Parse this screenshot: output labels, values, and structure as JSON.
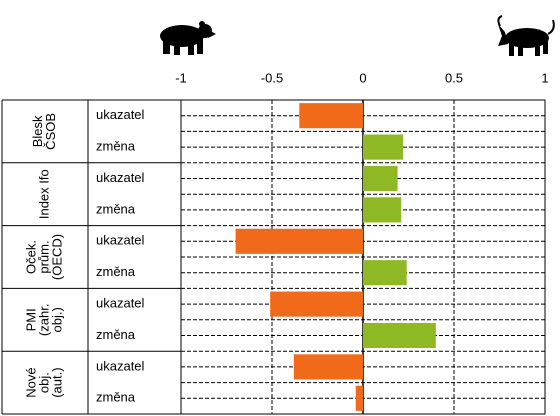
{
  "chart_data": {
    "type": "bar",
    "orientation": "horizontal",
    "groups": [
      {
        "label": [
          "Blesk",
          "ČSOB"
        ],
        "rows": [
          0,
          1
        ]
      },
      {
        "label": [
          "Index Ifo"
        ],
        "rows": [
          2,
          3
        ]
      },
      {
        "label": [
          "Oček.",
          "prům.",
          "(OECD)"
        ],
        "rows": [
          4,
          5
        ]
      },
      {
        "label": [
          "PMI",
          "(zahr.",
          "obj.)"
        ],
        "rows": [
          6,
          7
        ]
      },
      {
        "label": [
          "Nové",
          "obj.",
          "(aut.)"
        ],
        "rows": [
          8,
          9
        ]
      }
    ],
    "categories": [
      "ukazatel",
      "změna",
      "ukazatel",
      "změna",
      "ukazatel",
      "změna",
      "ukazatel",
      "změna",
      "ukazatel",
      "změna"
    ],
    "values": [
      -0.35,
      0.22,
      0.19,
      0.21,
      -0.7,
      0.24,
      -0.51,
      0.4,
      -0.38,
      -0.04
    ],
    "negative_color": "#f06a1a",
    "positive_color": "#8fb825",
    "xlim": [
      -1,
      1
    ],
    "xticks": [
      -1,
      -0.5,
      0,
      0.5,
      1
    ],
    "grid": true
  }
}
